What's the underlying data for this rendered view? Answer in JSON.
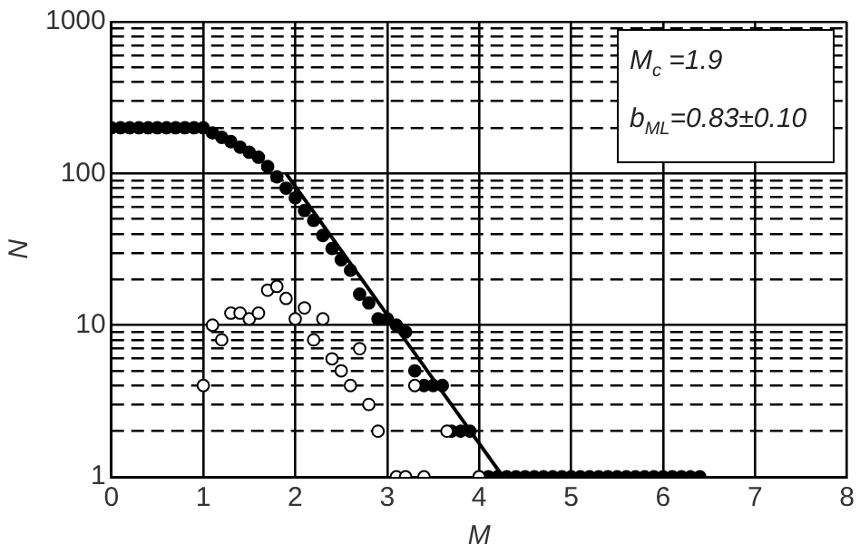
{
  "chart_data": {
    "type": "scatter",
    "xlabel": "M",
    "ylabel": "N",
    "log": "y",
    "grid": true,
    "legend": false,
    "marker": "circle",
    "xlim": [
      0,
      8
    ],
    "xticks": [
      0,
      1,
      2,
      3,
      4,
      5,
      6,
      7,
      8
    ],
    "ylim": [
      1,
      1000
    ],
    "yticks": [
      1,
      {
        "value": 2,
        "label": null
      },
      {
        "value": 3,
        "label": null
      },
      {
        "value": 4,
        "label": null
      },
      {
        "value": 5,
        "label": null
      },
      {
        "value": 6,
        "label": null
      },
      {
        "value": 7,
        "label": null
      },
      {
        "value": 8,
        "label": null
      },
      {
        "value": 9,
        "label": null
      },
      10,
      {
        "value": 20,
        "label": null
      },
      {
        "value": 30,
        "label": null
      },
      {
        "value": 40,
        "label": null
      },
      {
        "value": 50,
        "label": null
      },
      {
        "value": 60,
        "label": null
      },
      {
        "value": 70,
        "label": null
      },
      {
        "value": 80,
        "label": null
      },
      {
        "value": 90,
        "label": null
      },
      100,
      {
        "value": 200,
        "label": null
      },
      {
        "value": 300,
        "label": null
      },
      {
        "value": 400,
        "label": null
      },
      {
        "value": 500,
        "label": null
      },
      {
        "value": 600,
        "label": null
      },
      {
        "value": 700,
        "label": null
      },
      {
        "value": 800,
        "label": null
      },
      {
        "value": 900,
        "label": null
      },
      1000
    ],
    "annotations": [
      "M$_{c}$ =1.9",
      "b$_{ML}$=0.83±0.10"
    ],
    "series": [
      {
        "color": "#000000",
        "x": [
          0,
          0.1,
          0.2,
          0.3,
          0.4,
          0.5,
          0.6,
          0.7,
          0.8,
          0.9,
          1.0,
          1.1,
          1.2,
          1.3,
          1.4,
          1.5,
          1.6,
          1.7,
          1.8,
          1.9,
          2.0,
          2.1,
          2.2,
          2.3,
          2.4,
          2.5,
          2.6,
          2.7,
          2.8,
          2.9,
          3.0,
          3.1,
          3.2,
          3.3,
          3.4,
          3.5,
          3.6,
          3.7,
          3.8,
          3.9,
          4.0,
          4.1,
          4.2,
          4.3,
          4.4,
          4.5,
          4.6,
          4.7,
          4.8,
          4.9,
          5.0,
          5.1,
          5.2,
          5.3,
          5.4,
          5.5,
          5.6,
          5.7,
          5.8,
          5.9,
          6.0,
          6.1,
          6.2,
          6.3,
          6.4
        ],
        "values": [
          200,
          200,
          200,
          200,
          200,
          200,
          200,
          200,
          200,
          200,
          200,
          185,
          173,
          162,
          149,
          138,
          128,
          111,
          95,
          80,
          69,
          57,
          49,
          39,
          32,
          27,
          23,
          16,
          14,
          11,
          11,
          10,
          9,
          5,
          4,
          4,
          4,
          2,
          2,
          2,
          1,
          1,
          1,
          1,
          1,
          1,
          1,
          1,
          1,
          1,
          1,
          1,
          1,
          1,
          1,
          1,
          1,
          1,
          1,
          1,
          1,
          1,
          1,
          1,
          1
        ]
      },
      {
        "color": "#ffffff",
        "x": [
          1.0,
          1.1,
          1.2,
          1.3,
          1.4,
          1.5,
          1.6,
          1.7,
          1.8,
          1.9,
          2.0,
          2.1,
          2.2,
          2.3,
          2.4,
          2.5,
          2.6,
          2.7,
          2.8,
          2.9,
          3.1,
          3.2,
          3.3,
          3.4,
          3.65,
          4.0
        ],
        "values": [
          4,
          10,
          8,
          12,
          12,
          11,
          12,
          17,
          18,
          15,
          11,
          13,
          8,
          11,
          6,
          5,
          4,
          7,
          3,
          2,
          1,
          1,
          4,
          1,
          2,
          1
        ]
      },
      {
        "type": "line",
        "color": "#000000",
        "marker": "none",
        "x": [
          1.9,
          4.26
        ],
        "values": [
          100,
          1
        ]
      }
    ]
  }
}
